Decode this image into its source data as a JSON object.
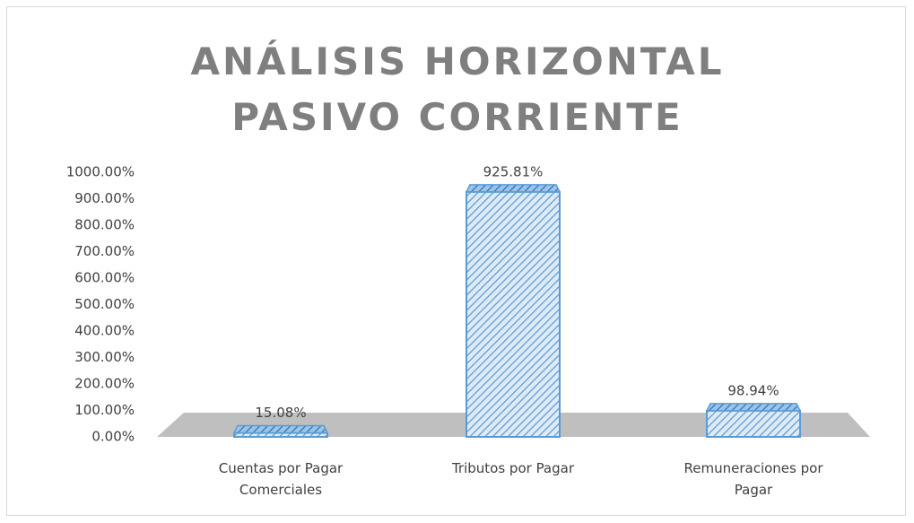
{
  "chart_data": {
    "type": "bar3d",
    "title": "ANÁLISIS HORIZONTAL PASIVO CORRIENTE",
    "categories": [
      "Cuentas por Pagar Comerciales",
      "Tributos por Pagar",
      "Remuneraciones por Pagar"
    ],
    "values": [
      15.08,
      925.81,
      98.94
    ],
    "value_labels": [
      "15.08%",
      "925.81%",
      "98.94%"
    ],
    "color": "#5b9bd5",
    "ylim": [
      0,
      1000
    ],
    "yticks": [
      {
        "value": 0,
        "label": "0.00%"
      },
      {
        "value": 100,
        "label": "100.00%"
      },
      {
        "value": 200,
        "label": "200.00%"
      },
      {
        "value": 300,
        "label": "300.00%"
      },
      {
        "value": 400,
        "label": "400.00%"
      },
      {
        "value": 500,
        "label": "500.00%"
      },
      {
        "value": 600,
        "label": "600.00%"
      },
      {
        "value": 700,
        "label": "700.00%"
      },
      {
        "value": 800,
        "label": "800.00%"
      },
      {
        "value": 900,
        "label": "900.00%"
      },
      {
        "value": 1000,
        "label": "1000.00%"
      }
    ],
    "grid": false
  }
}
